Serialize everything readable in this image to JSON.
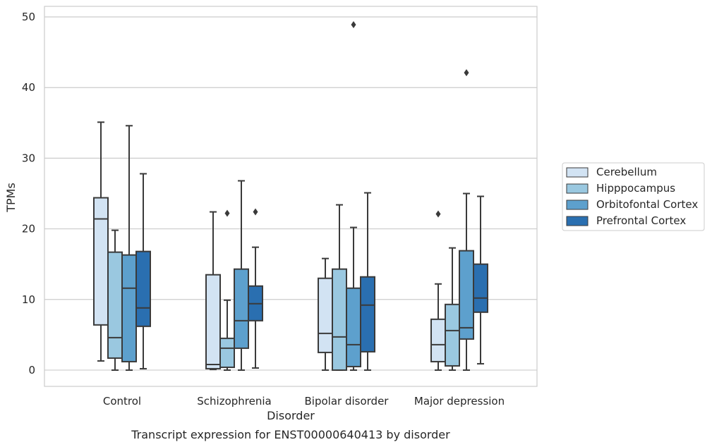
{
  "caption": "Transcript expression for ENST00000640413 by disorder",
  "chart_data": {
    "type": "box",
    "xlabel": "Disorder",
    "ylabel": "TPMs",
    "ylim": [
      -2.3,
      51.5
    ],
    "yticks": [
      0,
      10,
      20,
      30,
      40,
      50
    ],
    "grid": "horizontal",
    "legend_position": "right",
    "categories": [
      "Control",
      "Schizophrenia",
      "Bipolar disorder",
      "Major depression"
    ],
    "series": [
      {
        "name": "Cerebellum",
        "color": "#d2e3f3",
        "boxes": [
          {
            "whisker_low": 1.3,
            "q1": 6.4,
            "median": 21.4,
            "q3": 24.4,
            "whisker_high": 35.1,
            "outliers": []
          },
          {
            "whisker_low": 0.1,
            "q1": 0.2,
            "median": 0.8,
            "q3": 13.5,
            "whisker_high": 22.4,
            "outliers": []
          },
          {
            "whisker_low": 0.0,
            "q1": 2.5,
            "median": 5.2,
            "q3": 13.0,
            "whisker_high": 15.8,
            "outliers": []
          },
          {
            "whisker_low": 0.0,
            "q1": 1.2,
            "median": 3.6,
            "q3": 7.2,
            "whisker_high": 12.2,
            "outliers": [
              22.1
            ]
          }
        ]
      },
      {
        "name": "Hipppocampus",
        "color": "#9ac8e0",
        "boxes": [
          {
            "whisker_low": 0.0,
            "q1": 1.7,
            "median": 4.6,
            "q3": 16.7,
            "whisker_high": 19.8,
            "outliers": []
          },
          {
            "whisker_low": 0.0,
            "q1": 0.4,
            "median": 3.1,
            "q3": 4.5,
            "whisker_high": 9.9,
            "outliers": [
              22.2
            ]
          },
          {
            "whisker_low": 0.0,
            "q1": 0.0,
            "median": 4.7,
            "q3": 14.3,
            "whisker_high": 23.4,
            "outliers": []
          },
          {
            "whisker_low": 0.0,
            "q1": 0.6,
            "median": 5.6,
            "q3": 9.3,
            "whisker_high": 17.3,
            "outliers": []
          }
        ]
      },
      {
        "name": "Orbitofontal Cortex",
        "color": "#5da0cd",
        "boxes": [
          {
            "whisker_low": 0.0,
            "q1": 1.2,
            "median": 11.6,
            "q3": 16.3,
            "whisker_high": 34.6,
            "outliers": []
          },
          {
            "whisker_low": 0.0,
            "q1": 3.1,
            "median": 7.0,
            "q3": 14.3,
            "whisker_high": 26.8,
            "outliers": []
          },
          {
            "whisker_low": 0.0,
            "q1": 0.5,
            "median": 3.6,
            "q3": 11.6,
            "whisker_high": 20.2,
            "outliers": [
              48.9
            ]
          },
          {
            "whisker_low": 0.0,
            "q1": 4.4,
            "median": 6.0,
            "q3": 16.9,
            "whisker_high": 25.0,
            "outliers": [
              42.1
            ]
          }
        ]
      },
      {
        "name": "Prefrontal Cortex",
        "color": "#2a6fb0",
        "boxes": [
          {
            "whisker_low": 0.2,
            "q1": 6.2,
            "median": 8.8,
            "q3": 16.8,
            "whisker_high": 27.8,
            "outliers": []
          },
          {
            "whisker_low": 0.3,
            "q1": 7.0,
            "median": 9.4,
            "q3": 11.9,
            "whisker_high": 17.4,
            "outliers": [
              22.4
            ]
          },
          {
            "whisker_low": 0.0,
            "q1": 2.6,
            "median": 9.2,
            "q3": 13.2,
            "whisker_high": 25.1,
            "outliers": []
          },
          {
            "whisker_low": 0.9,
            "q1": 8.2,
            "median": 10.2,
            "q3": 15.0,
            "whisker_high": 24.6,
            "outliers": []
          }
        ]
      }
    ]
  }
}
